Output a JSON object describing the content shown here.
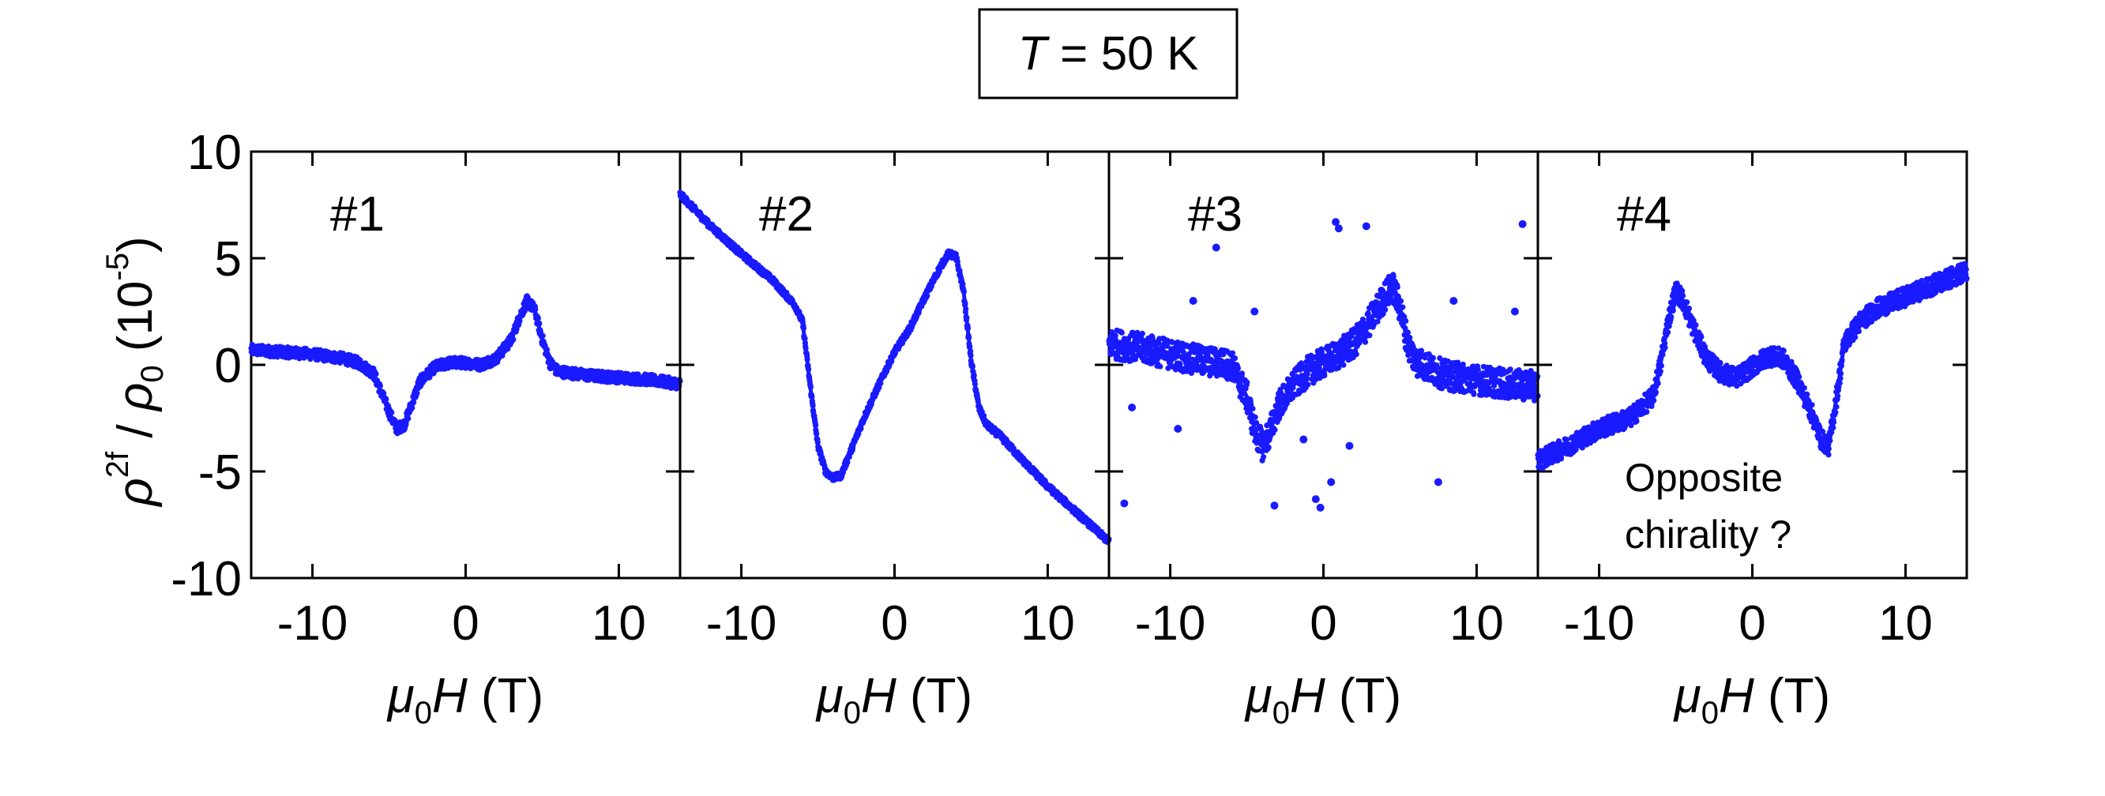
{
  "chart_data": {
    "type": "scatter",
    "title": "T = 50 K",
    "title_parts": {
      "var": "T",
      "rest": " = 50 K"
    },
    "ylabel": {
      "rho": "ρ",
      "sup": "2f",
      "slash": " / ",
      "rho0": "ρ",
      "sub0": "0",
      "units_open": " (10",
      "units_exp": "-5",
      "units_close": ")"
    },
    "xlabel": {
      "mu": "μ",
      "sub": "0",
      "var": "H",
      "unit": " (T)"
    },
    "xlim": [
      -14,
      14
    ],
    "ylim": [
      -10,
      10
    ],
    "xticks": [
      -10,
      0,
      10
    ],
    "xtick_labels": [
      "-10",
      "0",
      "10"
    ],
    "yticks": [
      -10,
      -5,
      0,
      5,
      10
    ],
    "ytick_labels": [
      "-10",
      "-5",
      "0",
      "5",
      "10"
    ],
    "color": "#1a1aff",
    "series": [
      {
        "name": "#1",
        "annotation": "",
        "x": [
          -14,
          -12,
          -10,
          -8,
          -7,
          -6,
          -5,
          -4.5,
          -4,
          -3.5,
          -3,
          -2,
          -1,
          0,
          1,
          2,
          3,
          3.5,
          4,
          4.5,
          5,
          5.5,
          6,
          7,
          8,
          10,
          12,
          14
        ],
        "y": [
          0.7,
          0.6,
          0.5,
          0.3,
          0.1,
          -0.4,
          -2.2,
          -3.0,
          -2.8,
          -1.8,
          -0.8,
          -0.1,
          0.1,
          0.1,
          0.0,
          0.3,
          1.2,
          2.2,
          3.0,
          2.6,
          1.2,
          0.1,
          -0.3,
          -0.4,
          -0.5,
          -0.6,
          -0.7,
          -0.9
        ],
        "outliers_x": [],
        "outliers_y": []
      },
      {
        "name": "#2",
        "annotation": "",
        "x": [
          -14,
          -12,
          -10,
          -8,
          -6.5,
          -6,
          -5.5,
          -5,
          -4.5,
          -4,
          -3.5,
          -3,
          -2,
          -1,
          0,
          1,
          2,
          3,
          3.5,
          4,
          4.5,
          5,
          5.5,
          6,
          7,
          8,
          10,
          12,
          14
        ],
        "y": [
          8.0,
          6.5,
          5.2,
          4.0,
          2.8,
          2.0,
          -1.0,
          -3.8,
          -5.0,
          -5.3,
          -5.2,
          -4.3,
          -2.5,
          -0.9,
          0.6,
          1.7,
          3.2,
          4.6,
          5.2,
          5.1,
          3.5,
          0.2,
          -2.0,
          -2.8,
          -3.4,
          -4.2,
          -5.7,
          -7.0,
          -8.3
        ],
        "outliers_x": [],
        "outliers_y": []
      },
      {
        "name": "#3",
        "annotation": "",
        "x": [
          -14,
          -12,
          -10,
          -8,
          -6,
          -5,
          -4.5,
          -4,
          -3.5,
          -3,
          -2,
          -1,
          0,
          1,
          2,
          3,
          4,
          4.5,
          5,
          5.5,
          6,
          7,
          8,
          10,
          12,
          14
        ],
        "y": [
          1.0,
          0.8,
          0.5,
          0.2,
          0.0,
          -1.5,
          -3.0,
          -3.8,
          -3.2,
          -2.0,
          -1.0,
          -0.3,
          0.1,
          0.5,
          1.0,
          2.0,
          3.2,
          3.7,
          2.7,
          1.0,
          0.2,
          -0.2,
          -0.5,
          -0.7,
          -0.9,
          -1.0
        ],
        "outliers_x": [
          -13,
          -12.5,
          -9.5,
          -8.5,
          -7,
          -4.5,
          -3.2,
          -1.3,
          -0.5,
          -0.2,
          0.5,
          0.8,
          1,
          1.7,
          2.3,
          2.8,
          7.5,
          8.5,
          12.5,
          13
        ],
        "outliers_y": [
          -6.5,
          -2.0,
          -3.0,
          3.0,
          5.5,
          2.5,
          -6.6,
          -3.5,
          -6.3,
          -6.7,
          -5.5,
          6.7,
          6.4,
          -3.8,
          1.5,
          6.5,
          -5.5,
          3.0,
          2.5,
          6.6
        ]
      },
      {
        "name": "#4",
        "annotation": [
          "Opposite",
          "chirality ?"
        ],
        "x": [
          -14,
          -12,
          -10,
          -8,
          -6.5,
          -6,
          -5.5,
          -5,
          -4.5,
          -4,
          -3,
          -2,
          -1,
          0,
          1,
          2,
          3,
          4,
          4.5,
          5,
          5.5,
          6,
          7,
          8,
          10,
          12,
          14
        ],
        "y": [
          -4.5,
          -3.8,
          -3.0,
          -2.5,
          -1.5,
          0.0,
          2.0,
          3.5,
          3.0,
          2.0,
          0.3,
          -0.4,
          -0.6,
          -0.1,
          0.4,
          0.3,
          -0.8,
          -2.5,
          -3.5,
          -3.8,
          -1.5,
          1.0,
          2.0,
          2.6,
          3.2,
          3.8,
          4.4
        ],
        "outliers_x": [],
        "outliers_y": []
      }
    ]
  }
}
